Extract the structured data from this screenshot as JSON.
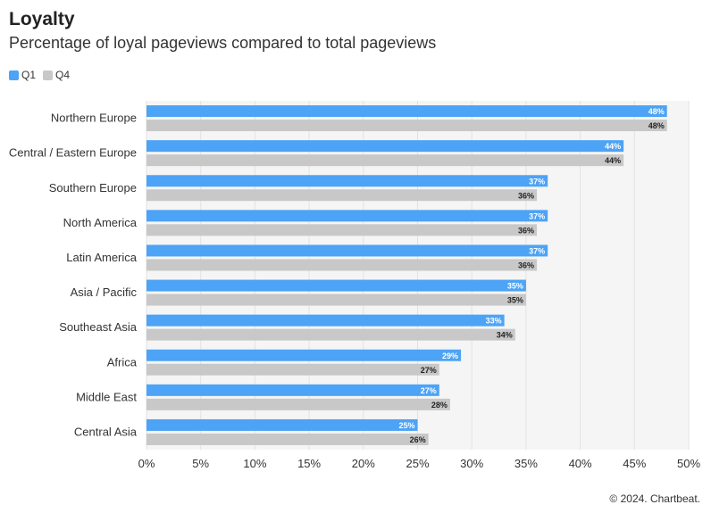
{
  "title": "Loyalty",
  "subtitle": "Percentage of loyal pageviews compared to total pageviews",
  "footer": "© 2024. Chartbeat.",
  "colors": {
    "q1": "#4da3f5",
    "q4": "#c8c8c8",
    "plot_bg": "#f5f5f5",
    "grid": "#e2e2e2"
  },
  "chart_data": {
    "type": "bar",
    "orientation": "horizontal",
    "categories": [
      "Northern Europe",
      "Central / Eastern Europe",
      "Southern Europe",
      "North America",
      "Latin America",
      "Asia / Pacific",
      "Southeast Asia",
      "Africa",
      "Middle East",
      "Central Asia"
    ],
    "series": [
      {
        "name": "Q1",
        "values": [
          48,
          44,
          37,
          37,
          37,
          35,
          33,
          29,
          27,
          25
        ]
      },
      {
        "name": "Q4",
        "values": [
          48,
          44,
          36,
          36,
          36,
          35,
          34,
          27,
          28,
          26
        ]
      }
    ],
    "xlim": [
      0,
      50
    ],
    "xticks": [
      "0%",
      "5%",
      "10%",
      "15%",
      "20%",
      "25%",
      "30%",
      "35%",
      "40%",
      "45%",
      "50%"
    ],
    "value_suffix": "%",
    "grid": true,
    "legend_position": "top-left"
  }
}
